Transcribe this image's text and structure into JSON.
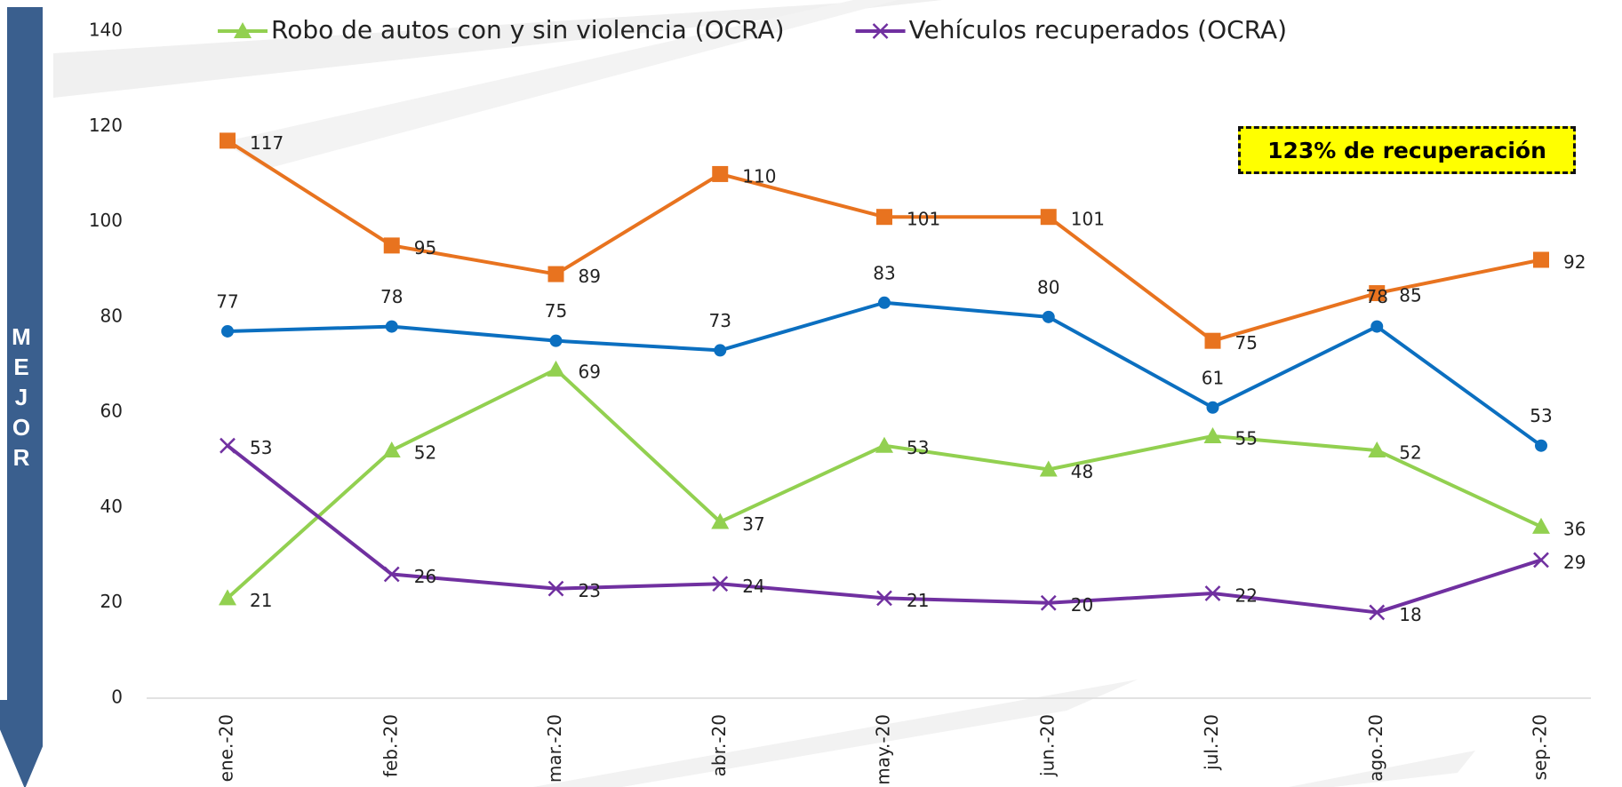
{
  "chart_data": {
    "type": "line",
    "categories": [
      "ene.-20",
      "feb.-20",
      "mar.-20",
      "abr.-20",
      "may.-20",
      "jun.-20",
      "jul.-20",
      "ago.-20",
      "sep.-20"
    ],
    "series": [
      {
        "color": "#e8731f",
        "marker": "square",
        "values": [
          117,
          95,
          89,
          110,
          101,
          101,
          75,
          85,
          92
        ]
      },
      {
        "color": "#0b6fc0",
        "marker": "circle",
        "values": [
          77,
          78,
          75,
          73,
          83,
          80,
          61,
          78,
          53
        ]
      },
      {
        "name": "Robo de autos con y sin violencia (OCRA)",
        "color": "#92d050",
        "marker": "triangle",
        "values": [
          21,
          52,
          69,
          37,
          53,
          48,
          55,
          52,
          36
        ]
      },
      {
        "name": "Vehículos recuperados (OCRA)",
        "color": "#7030a0",
        "marker": "x",
        "values": [
          53,
          26,
          23,
          24,
          21,
          20,
          22,
          18,
          29
        ]
      }
    ],
    "ylim": [
      0,
      140
    ],
    "yticks": [
      0,
      20,
      40,
      60,
      80,
      100,
      120,
      140
    ],
    "grid": false,
    "legend": "top",
    "annotation": "123% de recuperación",
    "side_label": "MEJOR"
  }
}
